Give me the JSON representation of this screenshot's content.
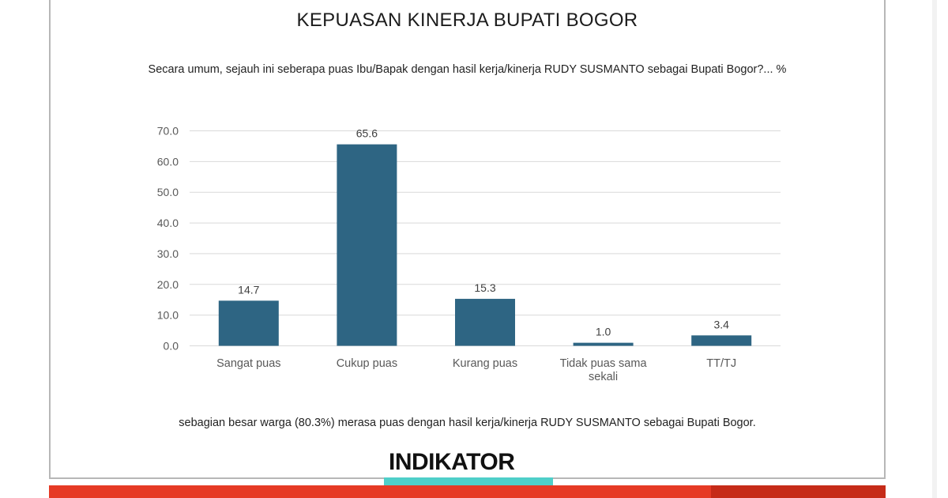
{
  "slide": {
    "title": "KEPUASAN KINERJA BUPATI BOGOR",
    "question": "Secara umum, sejauh ini seberapa puas Ibu/Bapak dengan hasil kerja/kinerja RUDY SUSMANTO sebagai Bupati Bogor?... %",
    "conclusion": "sebagian besar warga (80.3%) merasa puas dengan hasil kerja/kinerja RUDY SUSMANTO sebagai Bupati Bogor.",
    "logo_text": "INDIKATOR"
  },
  "colors": {
    "bar": "#2e6583",
    "grid": "#d9d9d9",
    "axis_text": "#595959",
    "accent_teal": "#4fcfc9",
    "accent_red": "#e63a25"
  },
  "chart_data": {
    "type": "bar",
    "categories": [
      "Sangat puas",
      "Cukup puas",
      "Kurang puas",
      "Tidak puas sama sekali",
      "TT/TJ"
    ],
    "values": [
      14.7,
      65.6,
      15.3,
      1.0,
      3.4
    ],
    "value_labels": [
      "14.7",
      "65.6",
      "15.3",
      "1.0",
      "3.4"
    ],
    "yticks": [
      "0.0",
      "10.0",
      "20.0",
      "30.0",
      "40.0",
      "50.0",
      "60.0",
      "70.0"
    ],
    "ylim": [
      0,
      70
    ],
    "grid": true,
    "legend": "none"
  }
}
